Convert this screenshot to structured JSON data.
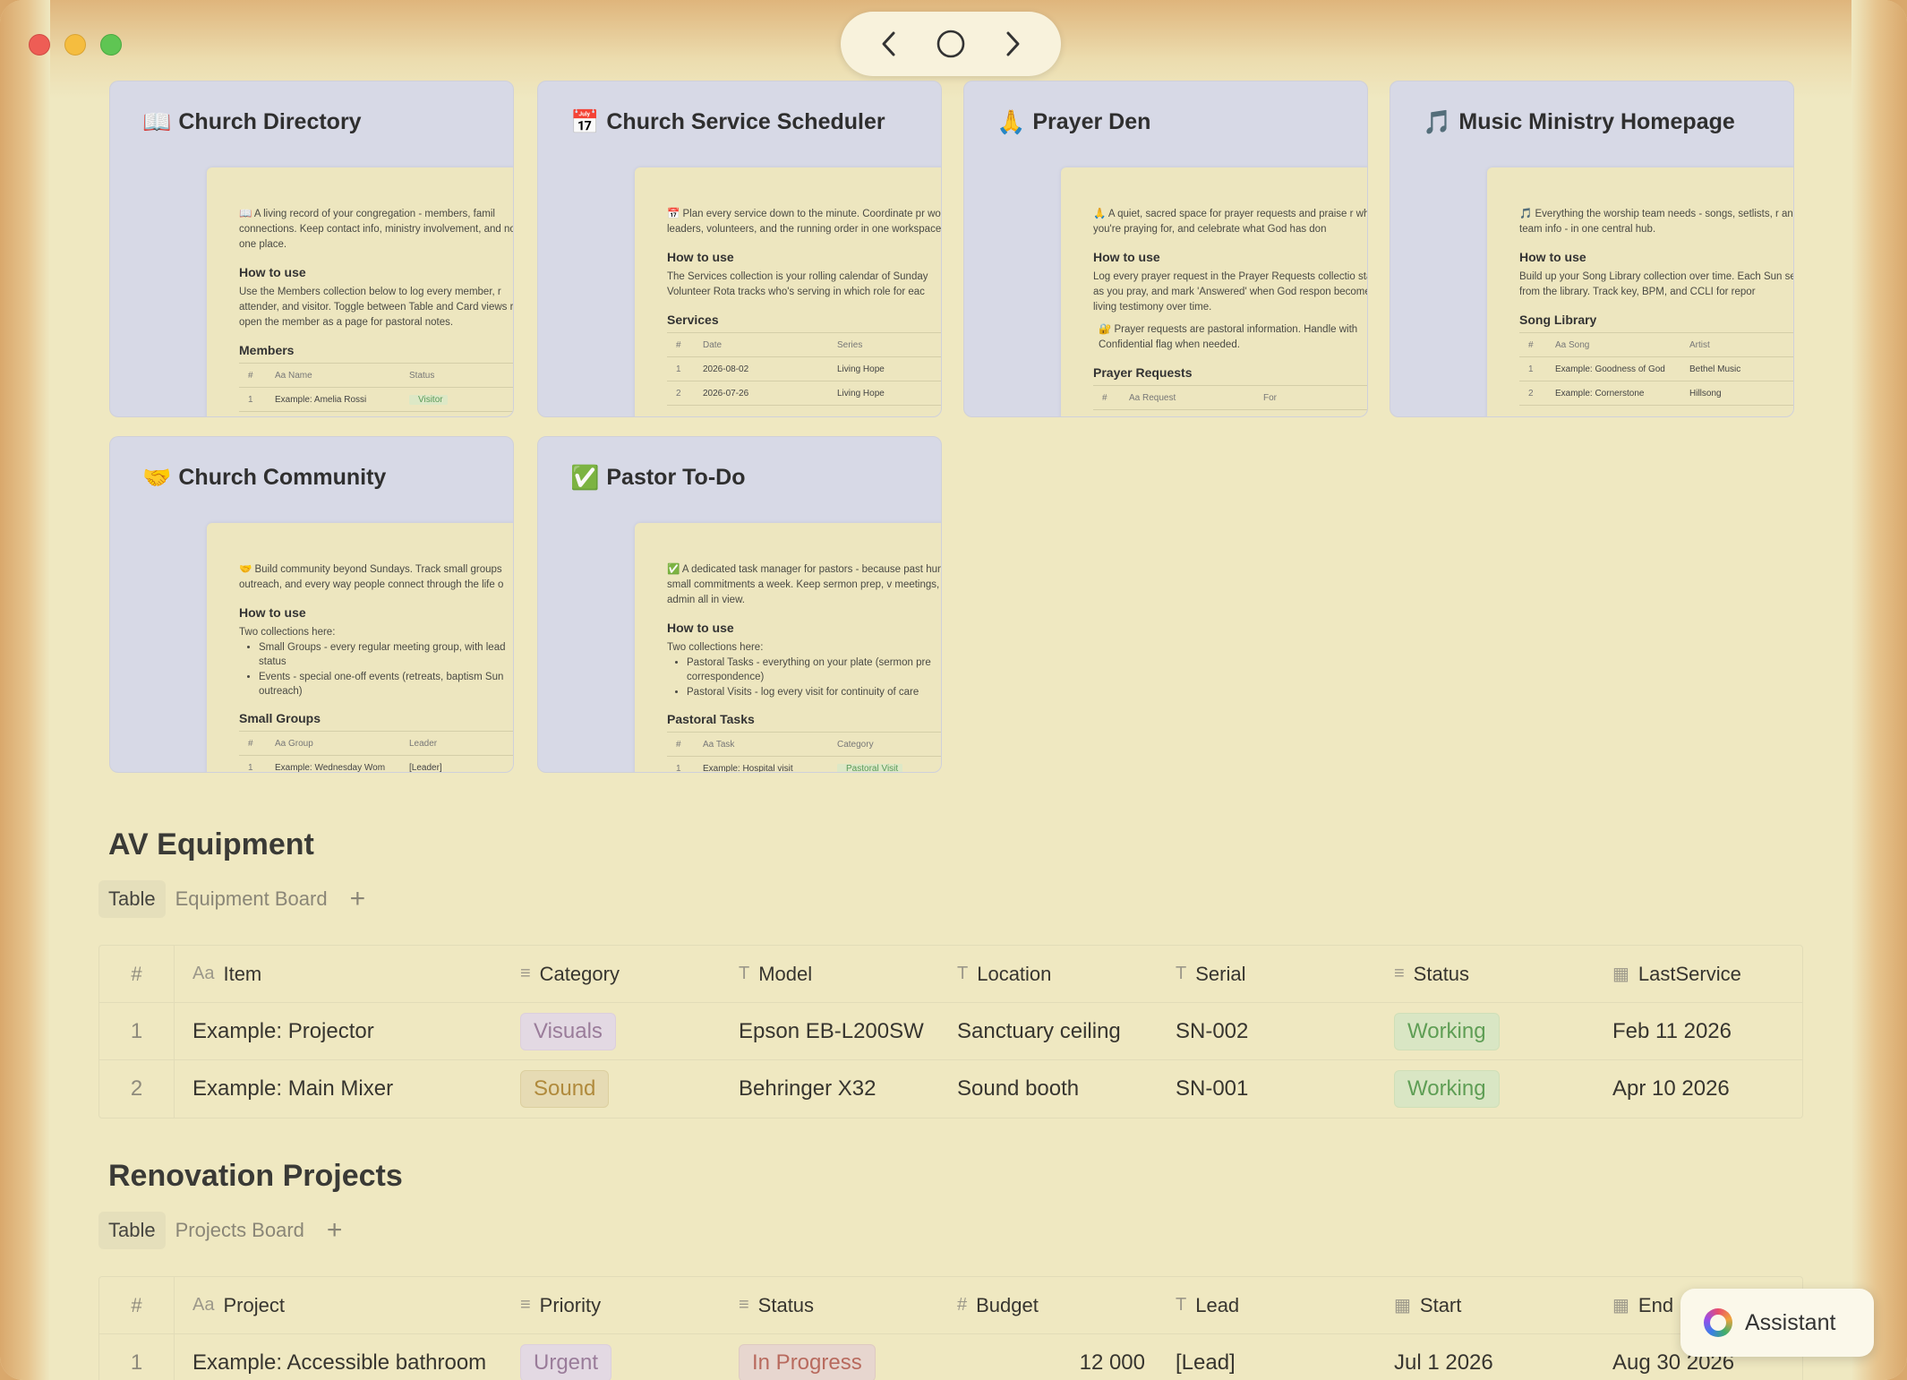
{
  "window": {
    "nav": {
      "back_glyph": "‹",
      "home_glyph": "○",
      "forward_glyph": "›"
    }
  },
  "cards": [
    {
      "emoji": "📖",
      "title": "Church Directory",
      "preview": {
        "intro": "📖 A living record of your congregation - members, famil connections. Keep contact info, ministry involvement, and notes in one place.",
        "howto_heading": "How to use",
        "howto_text": "Use the Members collection below to log every member, r attender, and visitor. Toggle between Table and Card views row to open the member as a page for pastoral notes.",
        "section_heading": "Members",
        "table_header": [
          "#",
          "Aa Name",
          "Status"
        ],
        "table_row": [
          "1",
          "Example: Amelia Rossi",
          "Visitor"
        ]
      }
    },
    {
      "emoji": "📅",
      "title": "Church Service Scheduler",
      "preview": {
        "intro": "📅 Plan every service down to the minute. Coordinate pr worship leaders, volunteers, and the running order in one workspace.",
        "howto_heading": "How to use",
        "howto_text": "The Services collection is your rolling calendar of Sunday Volunteer Rota tracks who's serving in which role for eac",
        "section_heading": "Services",
        "table_header": [
          "#",
          "Date",
          "Series"
        ],
        "table_rows": [
          [
            "1",
            "2026-08-02",
            "Living Hope"
          ],
          [
            "2",
            "2026-07-26",
            "Living Hope"
          ]
        ]
      }
    },
    {
      "emoji": "🙏",
      "title": "Prayer Den",
      "preview": {
        "intro": "🙏 A quiet, sacred space for prayer requests and praise r what you're praying for, and celebrate what God has don",
        "howto_heading": "How to use",
        "howto_text": "Log every prayer request in the Prayer Requests collectio status as you pray, and mark 'Answered' when God respon becomes a living testimony over time.",
        "note": "🔐 Prayer requests are pastoral information. Handle with Confidential flag when needed.",
        "section_heading": "Prayer Requests",
        "table_header": [
          "#",
          "Aa Request",
          "For"
        ]
      }
    },
    {
      "emoji": "🎵",
      "title": "Music Ministry Homepage",
      "preview": {
        "intro": "🎵 Everything the worship team needs - songs, setlists, r and team info - in one central hub.",
        "howto_heading": "How to use",
        "howto_text": "Build up your Song Library collection over time. Each Sun setlist from the library. Track key, BPM, and CCLI for repor",
        "section_heading": "Song Library",
        "table_header": [
          "#",
          "Aa Song",
          "Artist"
        ],
        "table_rows": [
          [
            "1",
            "Example: Goodness of God",
            "Bethel Music"
          ],
          [
            "2",
            "Example: Cornerstone",
            "Hillsong"
          ]
        ]
      }
    },
    {
      "emoji": "🤝",
      "title": "Church Community",
      "preview": {
        "intro": "🤝 Build community beyond Sundays. Track small groups outreach, and every way people connect through the life o",
        "howto_heading": "How to use",
        "howto_text": "Two collections here:",
        "list": [
          "Small Groups - every regular meeting group, with lead status",
          "Events - special one-off events (retreats, baptism Sun outreach)"
        ],
        "section_heading": "Small Groups",
        "table_header": [
          "#",
          "Aa Group",
          "Leader"
        ],
        "table_row": [
          "1",
          "Example: Wednesday Wom",
          "[Leader]"
        ]
      }
    },
    {
      "emoji": "✅",
      "title": "Pastor To-Do",
      "preview": {
        "intro": "✅ A dedicated task manager for pastors - because past hundred small commitments a week. Keep sermon prep, v meetings, and admin all in view.",
        "howto_heading": "How to use",
        "howto_text": "Two collections here:",
        "list": [
          "Pastoral Tasks - everything on your plate (sermon pre correspondence)",
          "Pastoral Visits - log every visit for continuity of care"
        ],
        "section_heading": "Pastoral Tasks",
        "table_header": [
          "#",
          "Aa Task",
          "Category"
        ],
        "table_row": [
          "1",
          "Example: Hospital visit",
          "Pastoral Visit"
        ]
      }
    }
  ],
  "av": {
    "title": "AV Equipment",
    "tabs": [
      "Table",
      "Equipment Board"
    ],
    "add": "+",
    "columns": [
      {
        "icon": "#",
        "label": "#"
      },
      {
        "icon": "Aa",
        "label": "Item"
      },
      {
        "icon": "≡",
        "label": "Category"
      },
      {
        "icon": "T",
        "label": "Model"
      },
      {
        "icon": "T",
        "label": "Location"
      },
      {
        "icon": "T",
        "label": "Serial"
      },
      {
        "icon": "≡",
        "label": "Status"
      },
      {
        "icon": "▦",
        "label": "LastService"
      }
    ],
    "rows": [
      {
        "num": "1",
        "item": "Example: Projector",
        "category": "Visuals",
        "model": "Epson EB-L200SW",
        "location": "Sanctuary ceiling",
        "serial": "SN-002",
        "status": "Working",
        "last": "Feb 11 2026"
      },
      {
        "num": "2",
        "item": "Example: Main Mixer",
        "category": "Sound",
        "model": "Behringer X32",
        "location": "Sound booth",
        "serial": "SN-001",
        "status": "Working",
        "last": "Apr 10 2026"
      }
    ]
  },
  "reno": {
    "title": "Renovation Projects",
    "tabs": [
      "Table",
      "Projects Board"
    ],
    "add": "+",
    "columns": [
      {
        "icon": "#",
        "label": "#"
      },
      {
        "icon": "Aa",
        "label": "Project"
      },
      {
        "icon": "≡",
        "label": "Priority"
      },
      {
        "icon": "≡",
        "label": "Status"
      },
      {
        "icon": "#",
        "label": "Budget"
      },
      {
        "icon": "T",
        "label": "Lead"
      },
      {
        "icon": "▦",
        "label": "Start"
      },
      {
        "icon": "▦",
        "label": "End"
      }
    ],
    "rows": [
      {
        "num": "1",
        "project": "Example: Accessible bathroom",
        "priority": "Urgent",
        "status": "In Progress",
        "budget": "12 000",
        "lead": "[Lead]",
        "start": "Jul 1 2026",
        "end": "Aug 30 2026"
      }
    ]
  },
  "assistant": {
    "label": "Assistant"
  },
  "colors": {
    "accent_green": "#5f9e55",
    "tag_lavender": "#9a7c9a",
    "tag_red": "#b86a5e",
    "tag_gold": "#b08a3c",
    "page_bg": "#efe8c1",
    "card_bg": "#d7d9e6"
  }
}
